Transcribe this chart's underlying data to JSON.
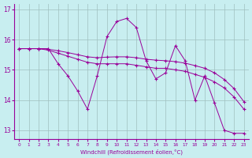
{
  "xlabel": "Windchill (Refroidissement éolien,°C)",
  "background_color": "#c8eef0",
  "line_color": "#990099",
  "grid_color": "#9fbfbf",
  "x": [
    0,
    1,
    2,
    3,
    4,
    5,
    6,
    7,
    8,
    9,
    10,
    11,
    12,
    13,
    14,
    15,
    16,
    17,
    18,
    19,
    20,
    21,
    22,
    23
  ],
  "line1": [
    15.7,
    15.7,
    15.7,
    15.7,
    15.2,
    14.8,
    14.3,
    13.7,
    14.8,
    16.1,
    16.6,
    16.7,
    16.4,
    15.3,
    14.7,
    14.9,
    15.8,
    15.3,
    14.0,
    14.8,
    13.9,
    13.0,
    12.9,
    12.9
  ],
  "line2": [
    15.7,
    15.7,
    15.7,
    15.65,
    15.55,
    15.45,
    15.35,
    15.25,
    15.2,
    15.2,
    15.2,
    15.2,
    15.15,
    15.1,
    15.05,
    15.05,
    15.0,
    14.95,
    14.85,
    14.75,
    14.6,
    14.4,
    14.1,
    13.7
  ],
  "line3": [
    15.7,
    15.7,
    15.7,
    15.68,
    15.63,
    15.57,
    15.5,
    15.43,
    15.4,
    15.42,
    15.43,
    15.43,
    15.4,
    15.35,
    15.32,
    15.3,
    15.27,
    15.22,
    15.14,
    15.05,
    14.9,
    14.68,
    14.38,
    13.95
  ],
  "ylim": [
    12.7,
    17.2
  ],
  "yticks": [
    13,
    14,
    15,
    16,
    17
  ],
  "xticks": [
    0,
    1,
    2,
    3,
    4,
    5,
    6,
    7,
    8,
    9,
    10,
    11,
    12,
    13,
    14,
    15,
    16,
    17,
    18,
    19,
    20,
    21,
    22,
    23
  ]
}
